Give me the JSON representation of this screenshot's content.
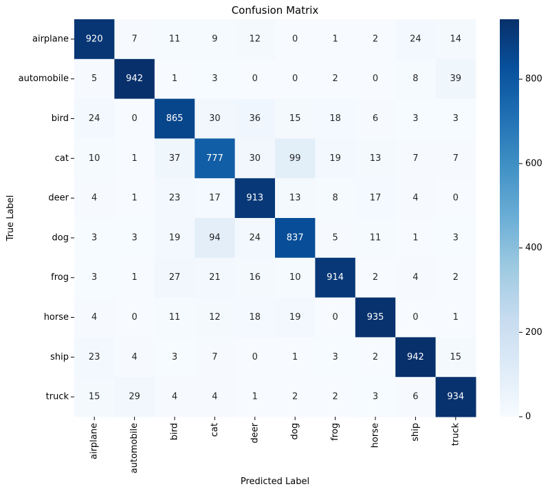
{
  "chart_data": {
    "type": "heatmap",
    "title": "Confusion Matrix",
    "xlabel": "Predicted Label",
    "ylabel": "True Label",
    "x_categories": [
      "airplane",
      "automobile",
      "bird",
      "cat",
      "deer",
      "dog",
      "frog",
      "horse",
      "ship",
      "truck"
    ],
    "y_categories": [
      "airplane",
      "automobile",
      "bird",
      "cat",
      "deer",
      "dog",
      "frog",
      "horse",
      "ship",
      "truck"
    ],
    "values": [
      [
        920,
        7,
        11,
        9,
        12,
        0,
        1,
        2,
        24,
        14
      ],
      [
        5,
        942,
        1,
        3,
        0,
        0,
        2,
        0,
        8,
        39
      ],
      [
        24,
        0,
        865,
        30,
        36,
        15,
        18,
        6,
        3,
        3
      ],
      [
        10,
        1,
        37,
        777,
        30,
        99,
        19,
        13,
        7,
        7
      ],
      [
        4,
        1,
        23,
        17,
        913,
        13,
        8,
        17,
        4,
        0
      ],
      [
        3,
        3,
        19,
        94,
        24,
        837,
        5,
        11,
        1,
        3
      ],
      [
        3,
        1,
        27,
        21,
        16,
        10,
        914,
        2,
        4,
        2
      ],
      [
        4,
        0,
        11,
        12,
        18,
        19,
        0,
        935,
        0,
        1
      ],
      [
        23,
        4,
        3,
        7,
        0,
        1,
        3,
        2,
        942,
        15
      ],
      [
        15,
        29,
        4,
        4,
        1,
        2,
        2,
        3,
        6,
        934
      ]
    ],
    "colorbar": {
      "colormap": "Blues",
      "vmin": 0,
      "vmax": 942,
      "ticks": [
        0,
        200,
        400,
        600,
        800
      ],
      "tick_labels": [
        "0",
        "200",
        "400",
        "600",
        "800"
      ]
    }
  }
}
